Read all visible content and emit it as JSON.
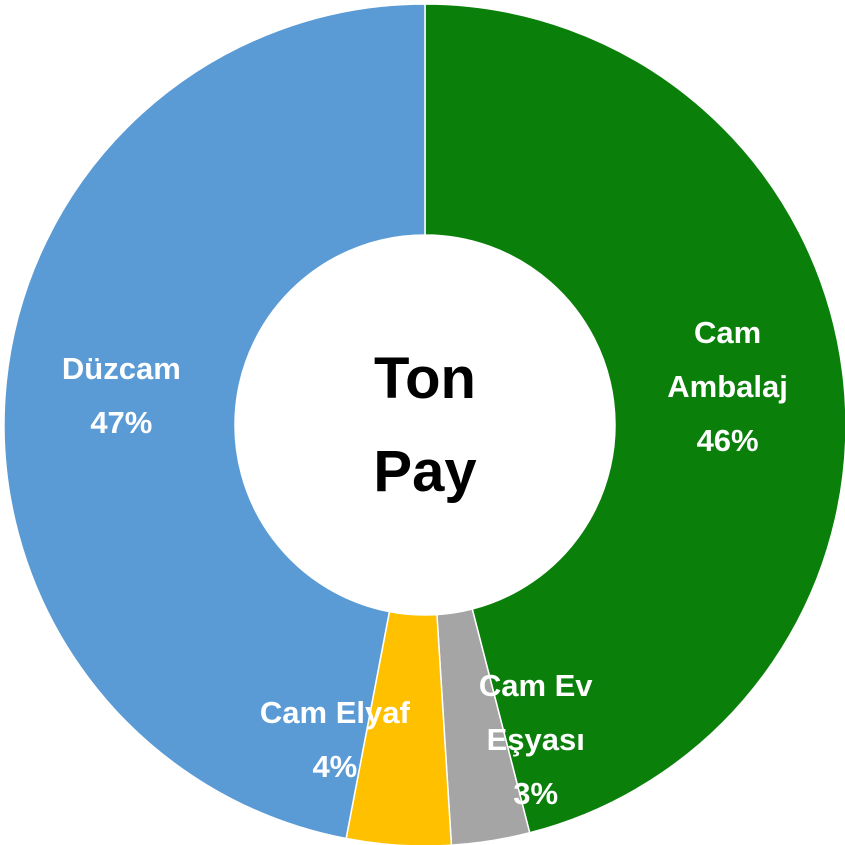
{
  "chart_data": {
    "type": "donut",
    "title": [
      "Ton",
      "Pay"
    ],
    "categories": [
      "Cam Ambalaj",
      "Cam Ev Eşyası",
      "Cam Elyaf",
      "Düzcam"
    ],
    "values": [
      46,
      3,
      4,
      47
    ],
    "value_labels": [
      "46%",
      "3%",
      "4%",
      "47%"
    ],
    "colors": [
      "#0a800a",
      "#a5a5a5",
      "#ffc000",
      "#5b9bd5"
    ]
  }
}
